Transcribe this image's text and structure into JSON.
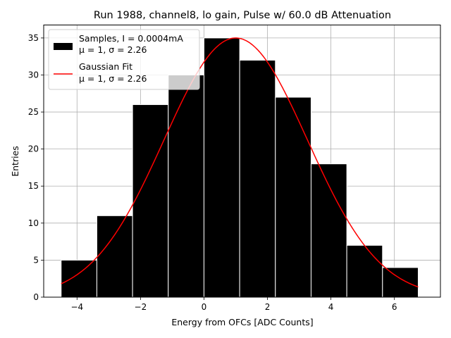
{
  "chart_data": {
    "type": "bar",
    "title": "Run 1988, channel8, lo gain, Pulse w/ 60.0 dB Attenuation",
    "xlabel": "Energy from OFCs [ADC Counts]",
    "ylabel": "Entries",
    "xlim": [
      -5.05,
      7.45
    ],
    "ylim": [
      0,
      36.75
    ],
    "xticks": [
      -4,
      -2,
      0,
      2,
      4,
      6
    ],
    "xtick_labels": [
      "−4",
      "−2",
      "0",
      "2",
      "4",
      "6"
    ],
    "yticks": [
      0,
      5,
      10,
      15,
      20,
      25,
      30,
      35
    ],
    "grid": true,
    "bins": [
      {
        "left": -4.5,
        "right": -3.375,
        "value": 5
      },
      {
        "left": -3.375,
        "right": -2.25,
        "value": 11
      },
      {
        "left": -2.25,
        "right": -1.125,
        "value": 26
      },
      {
        "left": -1.125,
        "right": 0.0,
        "value": 30
      },
      {
        "left": 0.0,
        "right": 1.125,
        "value": 35
      },
      {
        "left": 1.125,
        "right": 2.25,
        "value": 32
      },
      {
        "left": 2.25,
        "right": 3.375,
        "value": 27
      },
      {
        "left": 3.375,
        "right": 4.5,
        "value": 18
      },
      {
        "left": 4.5,
        "right": 5.625,
        "value": 7
      },
      {
        "left": 5.625,
        "right": 6.75,
        "value": 4
      }
    ],
    "series": [
      {
        "name": "Samples, I = 0.0004mA",
        "stats": "μ = 1, σ = 2.26",
        "color": "#000000",
        "kind": "histogram"
      },
      {
        "name": "Gaussian Fit",
        "stats": "μ = 1, σ = 2.26",
        "color": "#ff0000",
        "kind": "line",
        "amplitude": 35,
        "mu": 1.0,
        "sigma": 2.26,
        "x_range": [
          -4.5,
          6.75
        ]
      }
    ],
    "legend_position": "top-left"
  }
}
